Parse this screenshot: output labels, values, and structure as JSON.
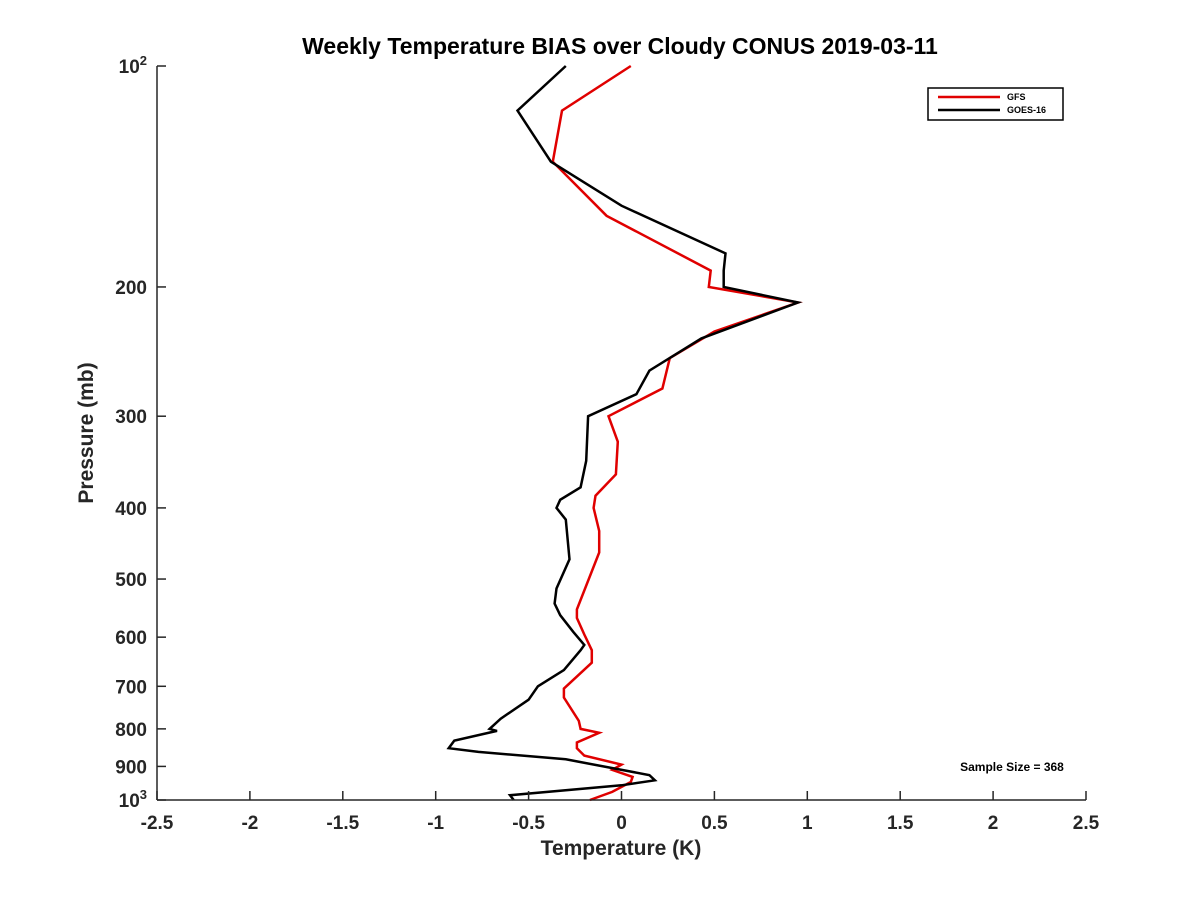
{
  "chart_data": {
    "type": "line",
    "title": "Weekly Temperature BIAS over Cloudy CONUS 2019-03-11",
    "xlabel": "Temperature (K)",
    "ylabel": "Pressure (mb)",
    "xlim": [
      -2.5,
      2.5
    ],
    "ylim": [
      100,
      1000
    ],
    "y_scale": "log",
    "y_reversed": true,
    "x_ticks": [
      -2.5,
      -2,
      -1.5,
      -1,
      -0.5,
      0,
      0.5,
      1,
      1.5,
      2,
      2.5
    ],
    "x_tick_labels": [
      "-2.5",
      "-2",
      "-1.5",
      "-1",
      "-0.5",
      "0",
      "0.5",
      "1",
      "1.5",
      "2",
      "2.5"
    ],
    "y_ticks": [
      100,
      200,
      300,
      400,
      500,
      600,
      700,
      800,
      900,
      1000
    ],
    "y_tick_labels": [
      {
        "base": "10",
        "exp": "2"
      },
      {
        "base": "200",
        "exp": ""
      },
      {
        "base": "300",
        "exp": ""
      },
      {
        "base": "400",
        "exp": ""
      },
      {
        "base": "500",
        "exp": ""
      },
      {
        "base": "600",
        "exp": ""
      },
      {
        "base": "700",
        "exp": ""
      },
      {
        "base": "800",
        "exp": ""
      },
      {
        "base": "900",
        "exp": ""
      },
      {
        "base": "10",
        "exp": "3"
      }
    ],
    "grid": false,
    "legend_position": "top-right",
    "annotation": "Sample Size = 368",
    "series": [
      {
        "name": "GFS",
        "color": "#e00000",
        "points": [
          [
            0.05,
            100
          ],
          [
            -0.32,
            115
          ],
          [
            -0.37,
            135
          ],
          [
            -0.08,
            160
          ],
          [
            0.48,
            190
          ],
          [
            0.47,
            200
          ],
          [
            0.95,
            210
          ],
          [
            0.5,
            230
          ],
          [
            0.26,
            250
          ],
          [
            0.22,
            275
          ],
          [
            -0.07,
            300
          ],
          [
            -0.02,
            325
          ],
          [
            -0.03,
            360
          ],
          [
            -0.14,
            385
          ],
          [
            -0.15,
            400
          ],
          [
            -0.12,
            430
          ],
          [
            -0.12,
            460
          ],
          [
            -0.24,
            550
          ],
          [
            -0.24,
            565
          ],
          [
            -0.2,
            595
          ],
          [
            -0.16,
            625
          ],
          [
            -0.16,
            650
          ],
          [
            -0.31,
            705
          ],
          [
            -0.31,
            725
          ],
          [
            -0.23,
            780
          ],
          [
            -0.22,
            800
          ],
          [
            -0.12,
            810
          ],
          [
            -0.24,
            835
          ],
          [
            -0.24,
            850
          ],
          [
            -0.2,
            870
          ],
          [
            0.0,
            895
          ],
          [
            -0.05,
            910
          ],
          [
            0.06,
            930
          ],
          [
            0.05,
            945
          ],
          [
            -0.05,
            975
          ],
          [
            -0.17,
            1000
          ]
        ]
      },
      {
        "name": "GOES-16",
        "color": "#000000",
        "points": [
          [
            -0.3,
            100
          ],
          [
            -0.56,
            115
          ],
          [
            -0.38,
            135
          ],
          [
            0.0,
            155
          ],
          [
            0.56,
            180
          ],
          [
            0.55,
            190
          ],
          [
            0.55,
            200
          ],
          [
            0.95,
            210
          ],
          [
            0.43,
            235
          ],
          [
            0.15,
            260
          ],
          [
            0.08,
            280
          ],
          [
            -0.18,
            300
          ],
          [
            -0.19,
            345
          ],
          [
            -0.22,
            375
          ],
          [
            -0.33,
            390
          ],
          [
            -0.35,
            400
          ],
          [
            -0.3,
            415
          ],
          [
            -0.28,
            470
          ],
          [
            -0.35,
            515
          ],
          [
            -0.36,
            540
          ],
          [
            -0.33,
            560
          ],
          [
            -0.26,
            590
          ],
          [
            -0.2,
            615
          ],
          [
            -0.22,
            625
          ],
          [
            -0.31,
            665
          ],
          [
            -0.45,
            700
          ],
          [
            -0.5,
            730
          ],
          [
            -0.65,
            775
          ],
          [
            -0.71,
            800
          ],
          [
            -0.67,
            805
          ],
          [
            -0.9,
            830
          ],
          [
            -0.93,
            850
          ],
          [
            -0.77,
            860
          ],
          [
            -0.3,
            880
          ],
          [
            0.15,
            925
          ],
          [
            0.18,
            940
          ],
          [
            0.0,
            955
          ],
          [
            -0.6,
            985
          ],
          [
            -0.58,
            1000
          ]
        ]
      }
    ]
  }
}
